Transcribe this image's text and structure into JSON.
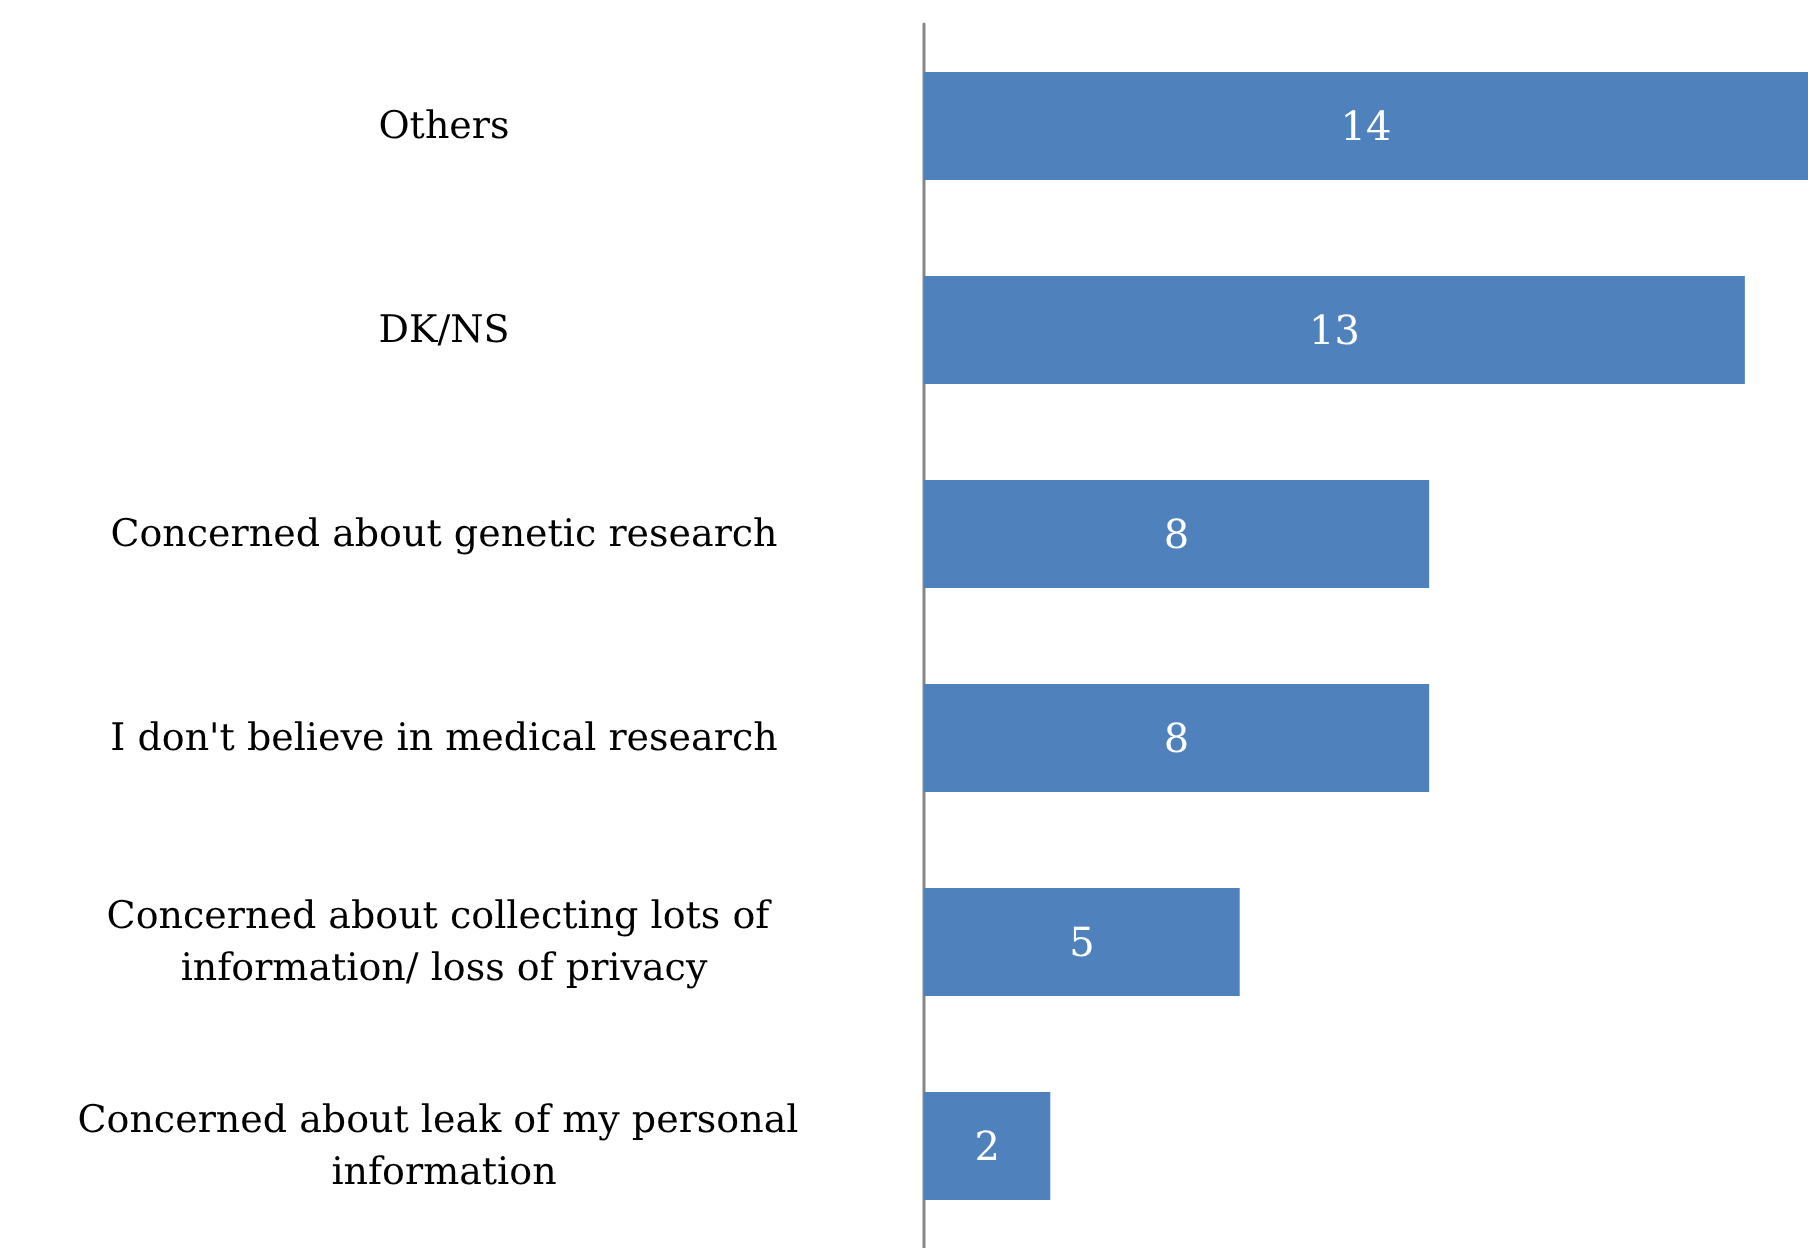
{
  "chart_data": {
    "type": "bar",
    "orientation": "horizontal",
    "categories": [
      "Others",
      "DK/NS",
      "Concerned about genetic research",
      "I don't believe in medical research",
      "Concerned about collecting lots of information/ loss of privacy",
      "Concerned about leak of my personal information"
    ],
    "values": [
      14,
      13,
      8,
      8,
      5,
      2
    ],
    "color": "#4f81bd",
    "data_labels": true
  }
}
